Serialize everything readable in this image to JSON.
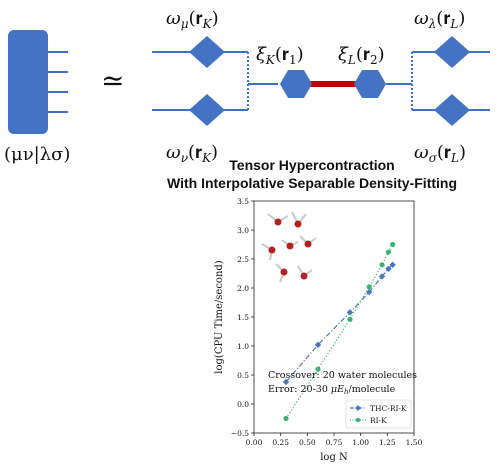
{
  "colors": {
    "tensor_blue": "#4473c4",
    "line_blue": "#3f6fbf",
    "bond_red": "#c00000",
    "thc_series": "#4a78b6",
    "ri_series": "#3cb371"
  },
  "diagram": {
    "eri_label": "(μν|λσ)",
    "approx_symbol": "≃",
    "omega_mu": "ω",
    "omega_mu_sub": "μ",
    "omega_mu_arg": "(𝐫",
    "omega_mu_arg_sub": "K",
    "omega_nu": "ω",
    "omega_nu_sub": "ν",
    "omega_nu_arg": "(𝐫",
    "omega_nu_arg_sub": "K",
    "xi_k": "ξ",
    "xi_k_sub": "K",
    "xi_k_arg": "(𝐫",
    "xi_k_arg_sub": "1",
    "xi_l": "ξ",
    "xi_l_sub": "L",
    "xi_l_arg": "(𝐫",
    "xi_l_arg_sub": "2",
    "omega_lambda": "ω",
    "omega_lambda_sub": "λ",
    "omega_lambda_arg": "(𝐫",
    "omega_lambda_arg_sub": "L",
    "omega_sigma": "ω",
    "omega_sigma_sub": "σ",
    "omega_sigma_arg": "(𝐫",
    "omega_sigma_arg_sub": "L",
    "close_paren": ")"
  },
  "title": {
    "line1": "Tensor Hypercontraction",
    "line2": "With Interpolative Separable Density-Fitting"
  },
  "chart_data": {
    "type": "line",
    "title": "",
    "xlabel": "log N",
    "ylabel": "log(CPU Time/second)",
    "xlim": [
      0.0,
      1.5
    ],
    "ylim": [
      -0.5,
      3.5
    ],
    "x_ticks": [
      "0.00",
      "0.25",
      "0.50",
      "0.75",
      "1.00",
      "1.25",
      "1.50"
    ],
    "y_ticks": [
      "−0.5",
      "0.0",
      "0.5",
      "1.0",
      "1.5",
      "2.0",
      "2.5",
      "3.0",
      "3.5"
    ],
    "annotation_line1": "Crossover: 20 water molecules",
    "annotation_line2_prefix": "Error: 20-30 ",
    "annotation_line2_math": "μE",
    "annotation_line2_sub": "h",
    "annotation_line2_suffix": "/molecule",
    "series": [
      {
        "name": "THC-RI-K",
        "style": "dashdot",
        "marker": "diamond",
        "x": [
          0.3,
          0.6,
          0.9,
          1.08,
          1.2,
          1.26,
          1.3
        ],
        "y": [
          0.38,
          1.02,
          1.58,
          1.93,
          2.2,
          2.33,
          2.4
        ]
      },
      {
        "name": "RI-K",
        "style": "dotted",
        "marker": "circle",
        "x": [
          0.3,
          0.6,
          0.9,
          1.08,
          1.2,
          1.26,
          1.3
        ],
        "y": [
          -0.25,
          0.6,
          1.46,
          2.02,
          2.4,
          2.62,
          2.75
        ]
      }
    ],
    "legend_position": "lower-right"
  }
}
